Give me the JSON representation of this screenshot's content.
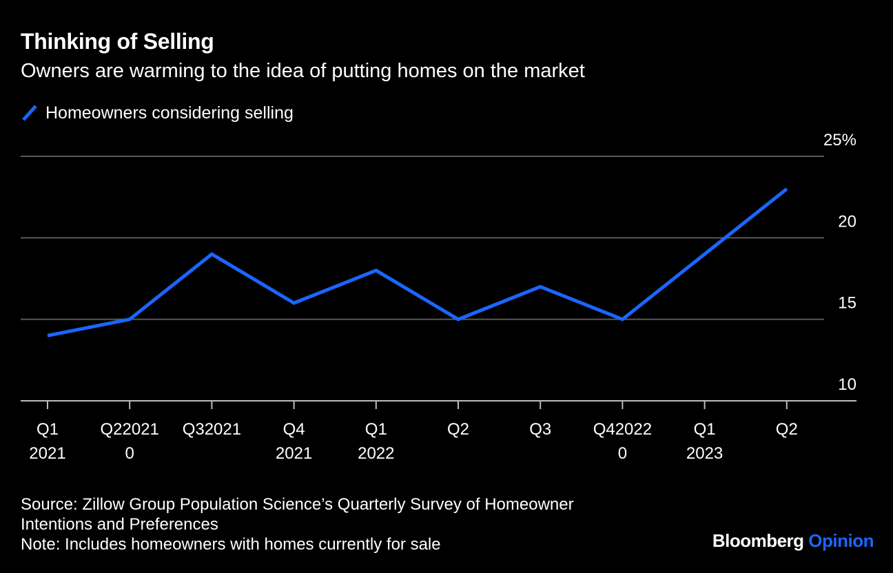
{
  "header": {
    "title": "Thinking of Selling",
    "subtitle": "Owners are warming to the idea of putting homes on the market"
  },
  "legend": {
    "label": "Homeowners considering selling"
  },
  "colors": {
    "series": "#1a66ff",
    "grid": "#5a5a5a",
    "axis": "#bdbdbd",
    "background": "#000000",
    "text": "#ffffff"
  },
  "chart_data": {
    "type": "line",
    "title": "Thinking of Selling",
    "subtitle": "Owners are warming to the idea of putting homes on the market",
    "xlabel": "",
    "ylabel": "",
    "ylim": [
      10,
      25
    ],
    "yticks": [
      10,
      15,
      20,
      25
    ],
    "ytick_labels": [
      "10",
      "15",
      "20",
      "25%"
    ],
    "grid": true,
    "legend_position": "top-left",
    "categories": [
      "Q1 2021",
      "Q2 2021",
      "Q3 2021",
      "Q4 2021",
      "Q1 2022",
      "Q2 2022",
      "Q3 2022",
      "Q4 2022",
      "Q1 2023",
      "Q2 2023"
    ],
    "x_tick_labels": [
      [
        "Q1",
        "2021"
      ],
      [
        "Q22021",
        "0"
      ],
      [
        "Q32021"
      ],
      [
        "Q4",
        "2021"
      ],
      [
        "Q1",
        "2022"
      ],
      [
        "Q2"
      ],
      [
        "Q3"
      ],
      [
        "Q42022",
        "0"
      ],
      [
        "Q1",
        "2023"
      ],
      [
        "Q2"
      ]
    ],
    "series": [
      {
        "name": "Homeowners considering selling",
        "values": [
          14,
          15,
          19,
          16,
          18,
          15,
          17,
          15,
          19,
          23
        ]
      }
    ]
  },
  "footer": {
    "source_line1": "Source: Zillow Group Population Science’s Quarterly Survey of Homeowner",
    "source_line2": "Intentions and Preferences",
    "note": "Note: Includes homeowners with homes currently for sale",
    "brand_main": "Bloomberg",
    "brand_sub": "Opinion"
  }
}
